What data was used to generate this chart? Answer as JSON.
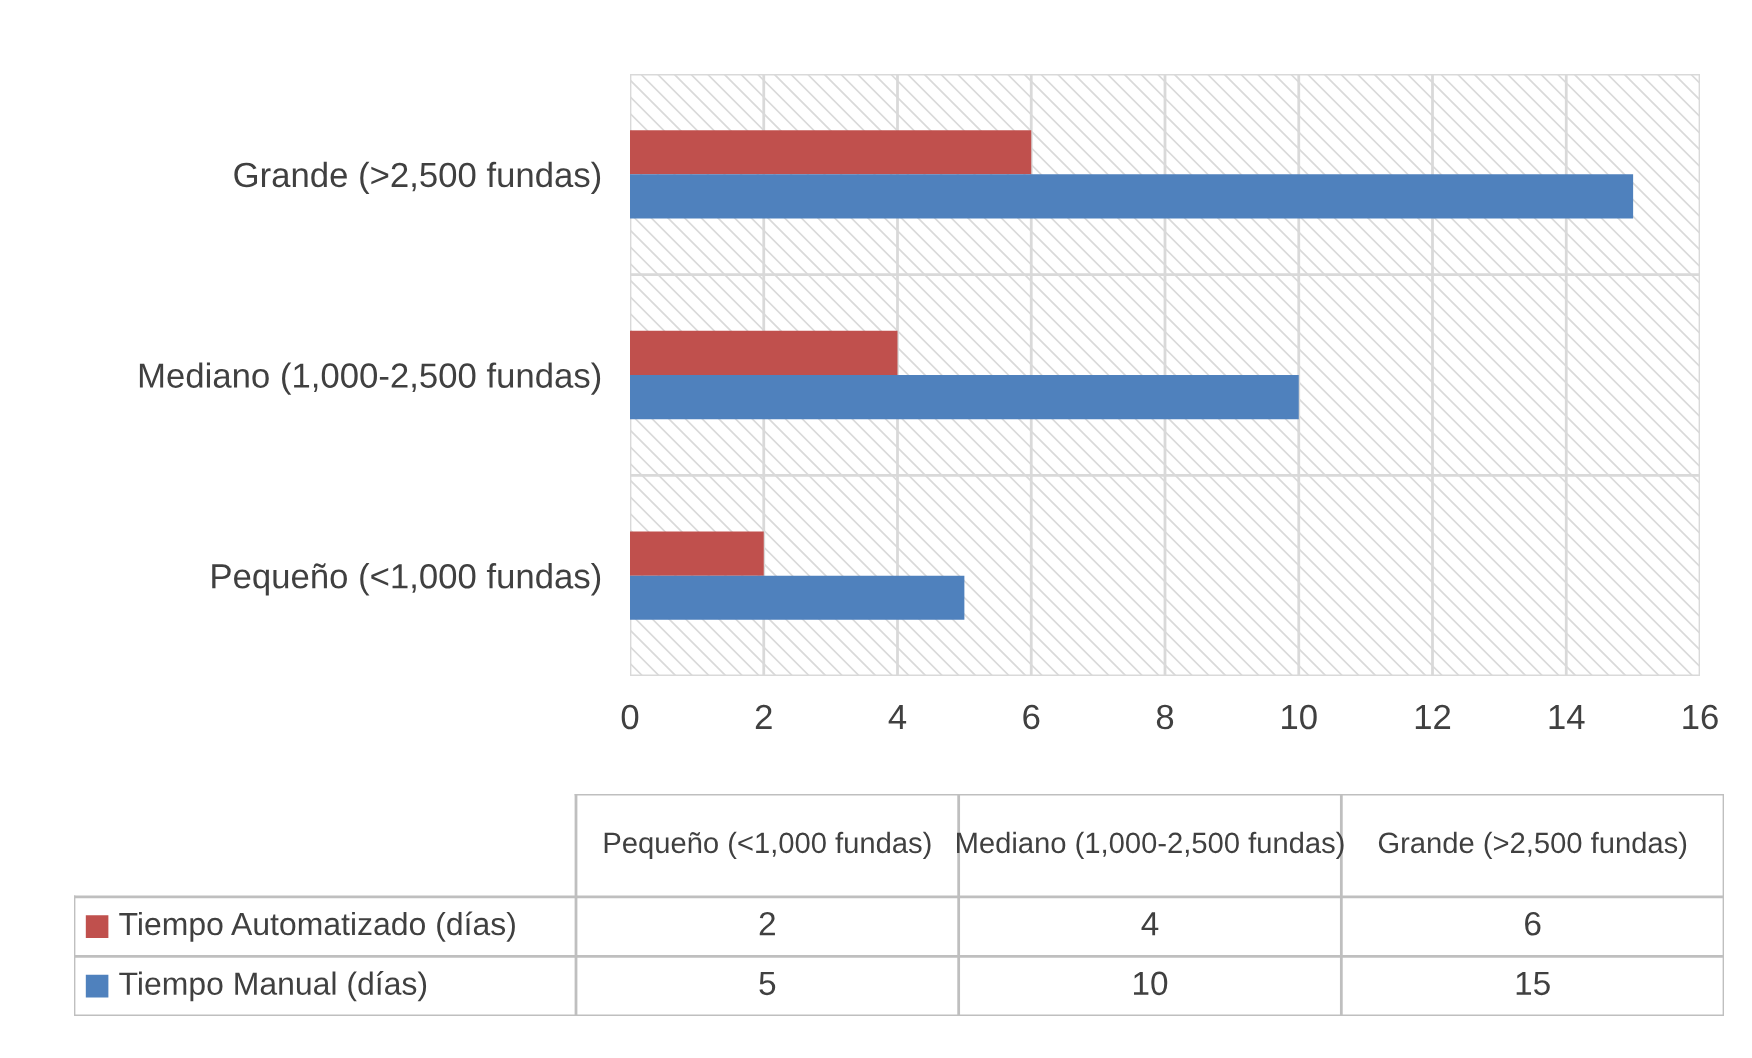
{
  "chart_data": [
    {
      "type": "bar",
      "orientation": "horizontal",
      "categories": [
        "Grande (>2,500 fundas)",
        "Mediano (1,000-2,500 fundas)",
        "Pequeño (<1,000 fundas)"
      ],
      "series": [
        {
          "color": "#c0504d",
          "values": [
            6,
            4,
            2
          ]
        },
        {
          "color": "#4f81bd",
          "values": [
            15,
            10,
            5
          ]
        }
      ],
      "xlim": [
        0,
        16
      ],
      "xticks": [
        0,
        2,
        4,
        6,
        8,
        10,
        12,
        14,
        16
      ],
      "grid": true
    },
    {
      "type": "other",
      "categories": [
        "Pequeño (<1,000 fundas)",
        "Mediano (1,000-2,500 fundas)",
        "Grande (>2,500 fundas)"
      ],
      "series": [
        {
          "name": "Tiempo Automatizado (días)",
          "color": "#c0504d",
          "values": [
            2,
            4,
            6
          ]
        },
        {
          "name": "Tiempo Manual (días)",
          "color": "#4f81bd",
          "values": [
            5,
            10,
            15
          ]
        }
      ],
      "data_labels": true
    }
  ]
}
